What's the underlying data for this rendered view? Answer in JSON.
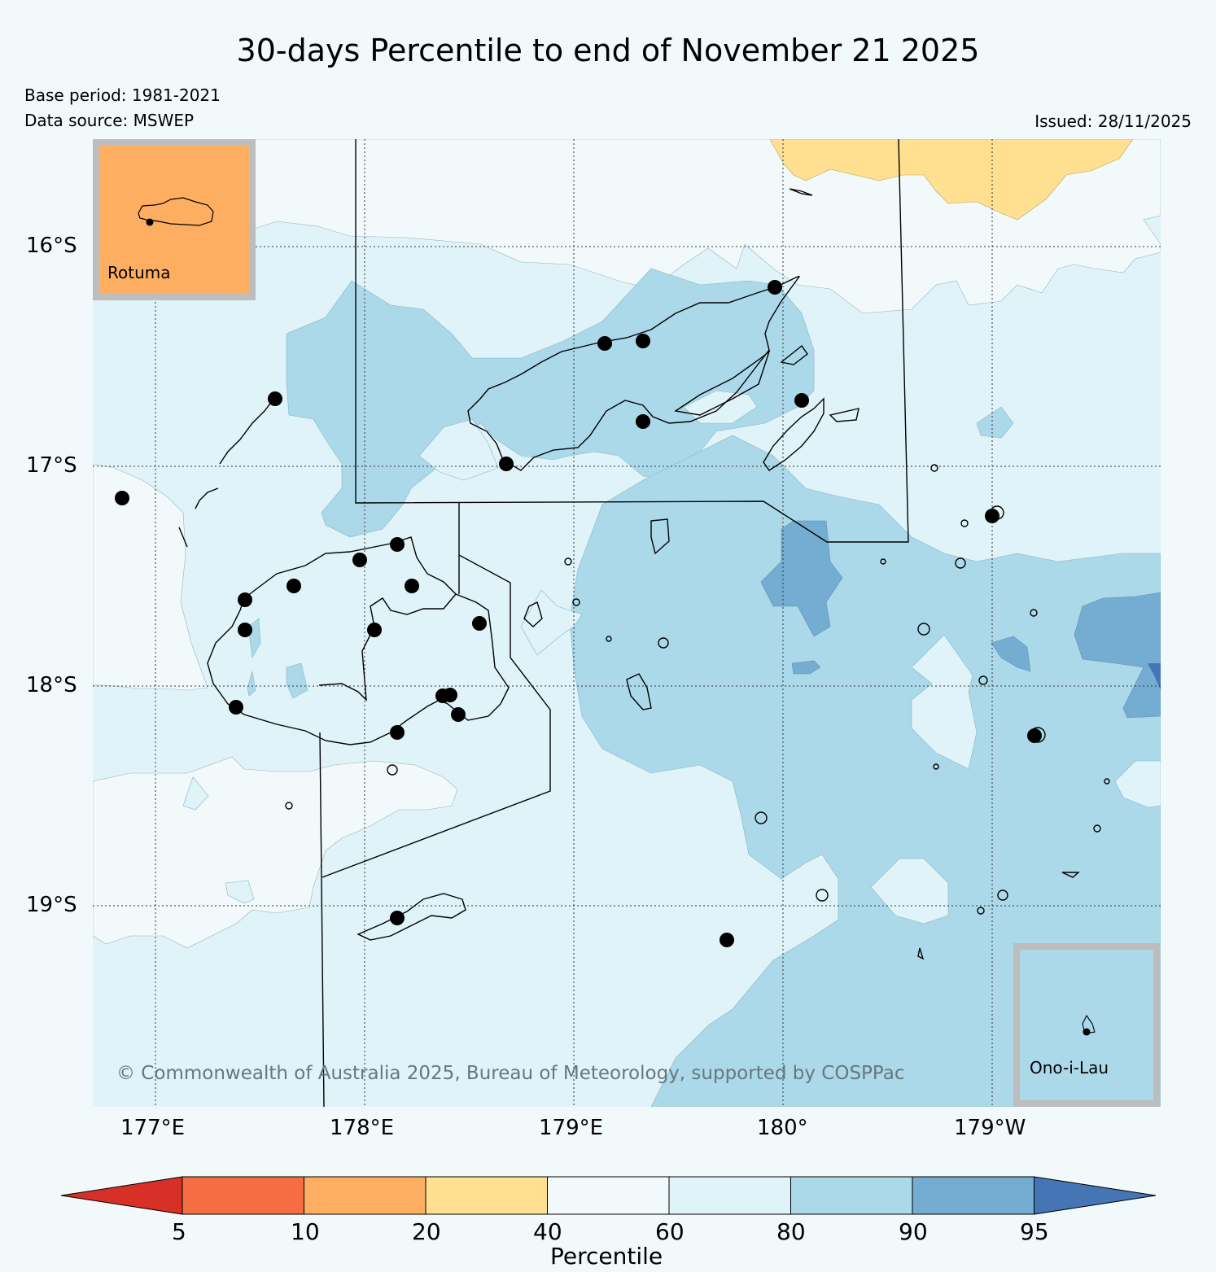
{
  "title": "30-days Percentile to end of November 21 2025",
  "base_period": "Base period: 1981-2021",
  "data_source": "Data source: MSWEP",
  "issued": "Issued: 28/11/2025",
  "copyright": "© Commonwealth of Australia 2025, Bureau of Meteorology, supported by COSPPac",
  "lat_labels": [
    "16°S",
    "17°S",
    "18°S",
    "19°S"
  ],
  "lon_labels": [
    "177°E",
    "178°E",
    "179°E",
    "180°",
    "179°W"
  ],
  "insets": {
    "rotuma": {
      "label": "Rotuma",
      "color": "#fdae61"
    },
    "ono_i_lau": {
      "label": "Ono-i-Lau",
      "color": "#abd9e9"
    }
  },
  "colorbar": {
    "label": "Percentile",
    "ticks": [
      "5",
      "10",
      "20",
      "40",
      "60",
      "80",
      "90",
      "95"
    ],
    "colors": [
      "#d73027",
      "#f46d43",
      "#fdae61",
      "#fee090",
      "#f2f9fb",
      "#e0f3f8",
      "#abd9e9",
      "#74add1",
      "#4575b4"
    ]
  },
  "palette": {
    "p40_60": "#f2f9fb",
    "p60_80": "#e0f3f8",
    "p80_90": "#abd9e9",
    "p90_95": "#74add1",
    "p20_40": "#fee090",
    "p95_up": "#4575b4"
  }
}
